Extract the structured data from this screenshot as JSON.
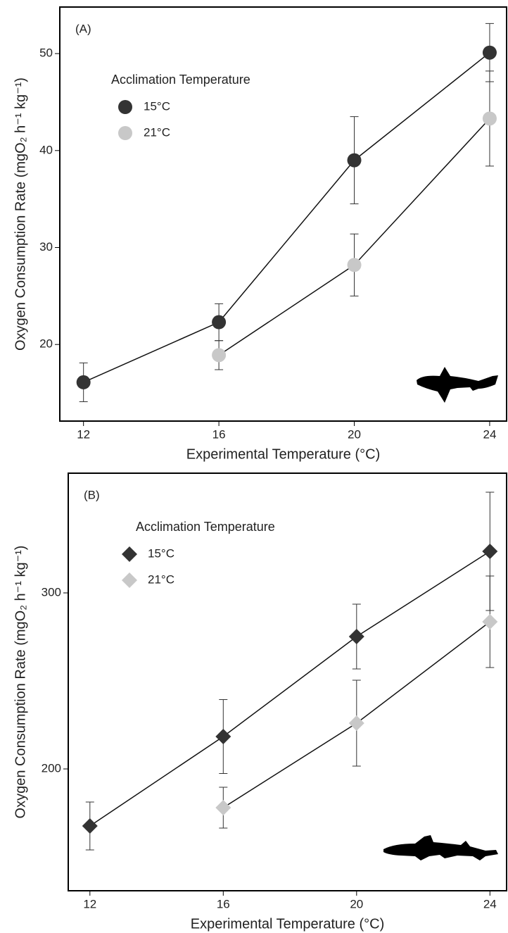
{
  "chart_data": [
    {
      "type": "line",
      "panel_label": "(A)",
      "xlabel": "Experimental Temperature (°C)",
      "ylabel": "Oxygen Consumption Rate (mgO₂ h⁻¹ kg⁻¹)",
      "legend_title": "Acclimation Temperature",
      "marker": "circle",
      "xlim": [
        11.3,
        24.5
      ],
      "ylim": [
        12.1,
        54.8
      ],
      "xticks": [
        12,
        16,
        20,
        24
      ],
      "yticks": [
        20,
        30,
        40,
        50
      ],
      "series": [
        {
          "name": "15°C",
          "color": "#333333",
          "x": [
            12,
            16,
            20,
            24
          ],
          "values": [
            16.1,
            22.3,
            39.0,
            50.1
          ],
          "errors": [
            2.0,
            1.9,
            4.5,
            3.0
          ]
        },
        {
          "name": "21°C",
          "color": "#c8c8c8",
          "x": [
            16,
            20,
            24
          ],
          "values": [
            18.9,
            28.2,
            43.3
          ],
          "errors": [
            1.5,
            3.2,
            4.9
          ]
        }
      ]
    },
    {
      "type": "line",
      "panel_label": "(B)",
      "xlabel": "Experimental Temperature (°C)",
      "ylabel": "Oxygen Consumption Rate (mgO₂ h⁻¹ kg⁻¹)",
      "legend_title": "Acclimation Temperature",
      "marker": "diamond",
      "xlim": [
        11.35,
        24.5
      ],
      "ylim": [
        130.8,
        368
      ],
      "xticks": [
        12,
        16,
        20,
        24
      ],
      "yticks": [
        200,
        300
      ],
      "series": [
        {
          "name": "15°C",
          "color": "#333333",
          "x": [
            12,
            16,
            20,
            24
          ],
          "values": [
            167.6,
            218.4,
            275.2,
            323.6
          ],
          "errors": [
            13.6,
            21.0,
            18.4,
            33.6
          ]
        },
        {
          "name": "21°C",
          "color": "#c8c8c8",
          "x": [
            16,
            20,
            24
          ],
          "values": [
            178.0,
            226.0,
            283.6
          ],
          "errors": [
            11.6,
            24.4,
            26.0
          ]
        }
      ]
    }
  ]
}
